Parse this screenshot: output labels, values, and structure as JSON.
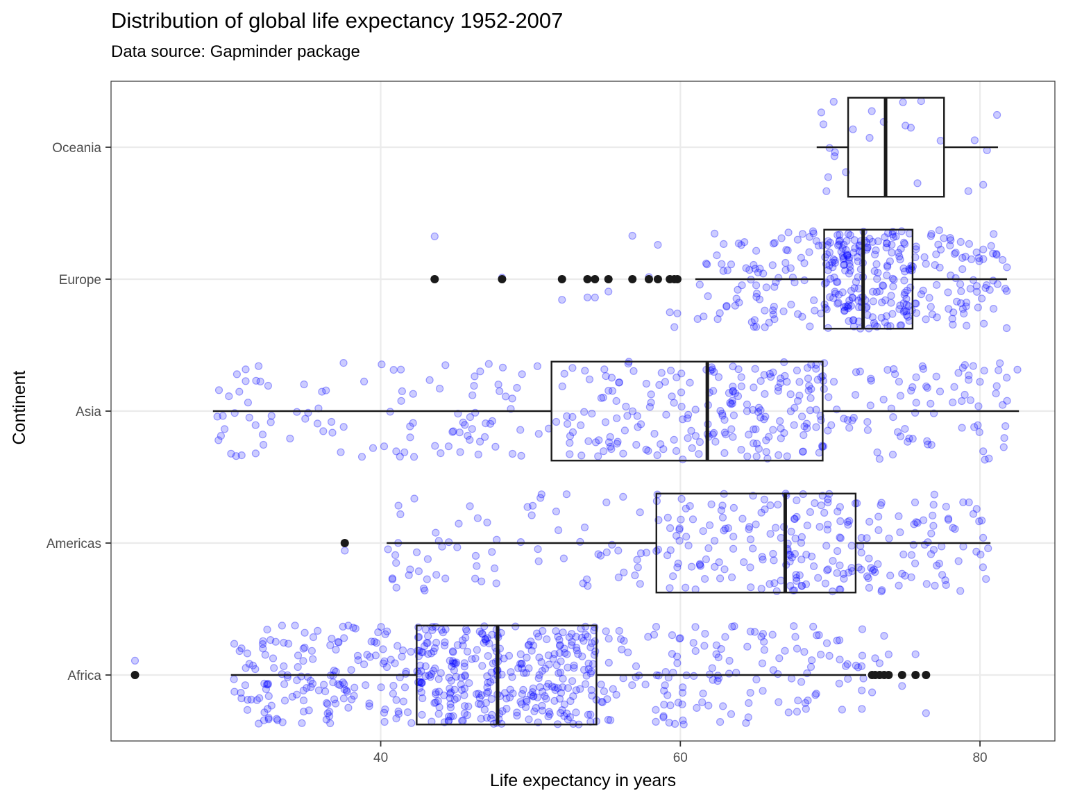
{
  "chart_data": {
    "type": "boxplot",
    "title": "Distribution of global life expectancy 1952-2007",
    "subtitle": "Data source: Gapminder package",
    "xlabel": "Life expectancy in years",
    "ylabel": "Continent",
    "xlim": [
      22,
      85
    ],
    "xticks": [
      40,
      60,
      80
    ],
    "categories": [
      "Africa",
      "Americas",
      "Asia",
      "Europe",
      "Oceania"
    ],
    "grid": true,
    "legend": "none",
    "colors": {
      "points": "#0000ff",
      "box": "#1a1a1a",
      "outlier": "#1a1a1a",
      "grid": "#ebebeb"
    },
    "jitter": {
      "point_alpha": 0.2,
      "n_points": {
        "Africa": 624,
        "Americas": 300,
        "Asia": 396,
        "Europe": 360,
        "Oceania": 24
      }
    },
    "boxes": [
      {
        "category": "Africa",
        "lower_whisker": 30.0,
        "q1": 42.4,
        "median": 47.8,
        "q3": 54.4,
        "upper_whisker": 72.4,
        "outliers": [
          23.6,
          72.8,
          73.0,
          73.3,
          73.6,
          73.9,
          74.8,
          75.7,
          76.4
        ]
      },
      {
        "category": "Americas",
        "lower_whisker": 40.4,
        "q1": 58.4,
        "median": 67.0,
        "q3": 71.7,
        "upper_whisker": 80.7,
        "outliers": [
          37.6
        ]
      },
      {
        "category": "Asia",
        "lower_whisker": 28.8,
        "q1": 51.4,
        "median": 61.8,
        "q3": 69.5,
        "upper_whisker": 82.6,
        "outliers": []
      },
      {
        "category": "Europe",
        "lower_whisker": 61.0,
        "q1": 69.6,
        "median": 72.2,
        "q3": 75.5,
        "upper_whisker": 81.8,
        "outliers": [
          43.6,
          48.1,
          52.1,
          53.8,
          54.3,
          55.2,
          56.8,
          57.9,
          58.5,
          59.3,
          59.6,
          59.8
        ]
      },
      {
        "category": "Oceania",
        "lower_whisker": 69.1,
        "q1": 71.2,
        "median": 73.7,
        "q3": 77.6,
        "upper_whisker": 81.2,
        "outliers": []
      }
    ]
  }
}
